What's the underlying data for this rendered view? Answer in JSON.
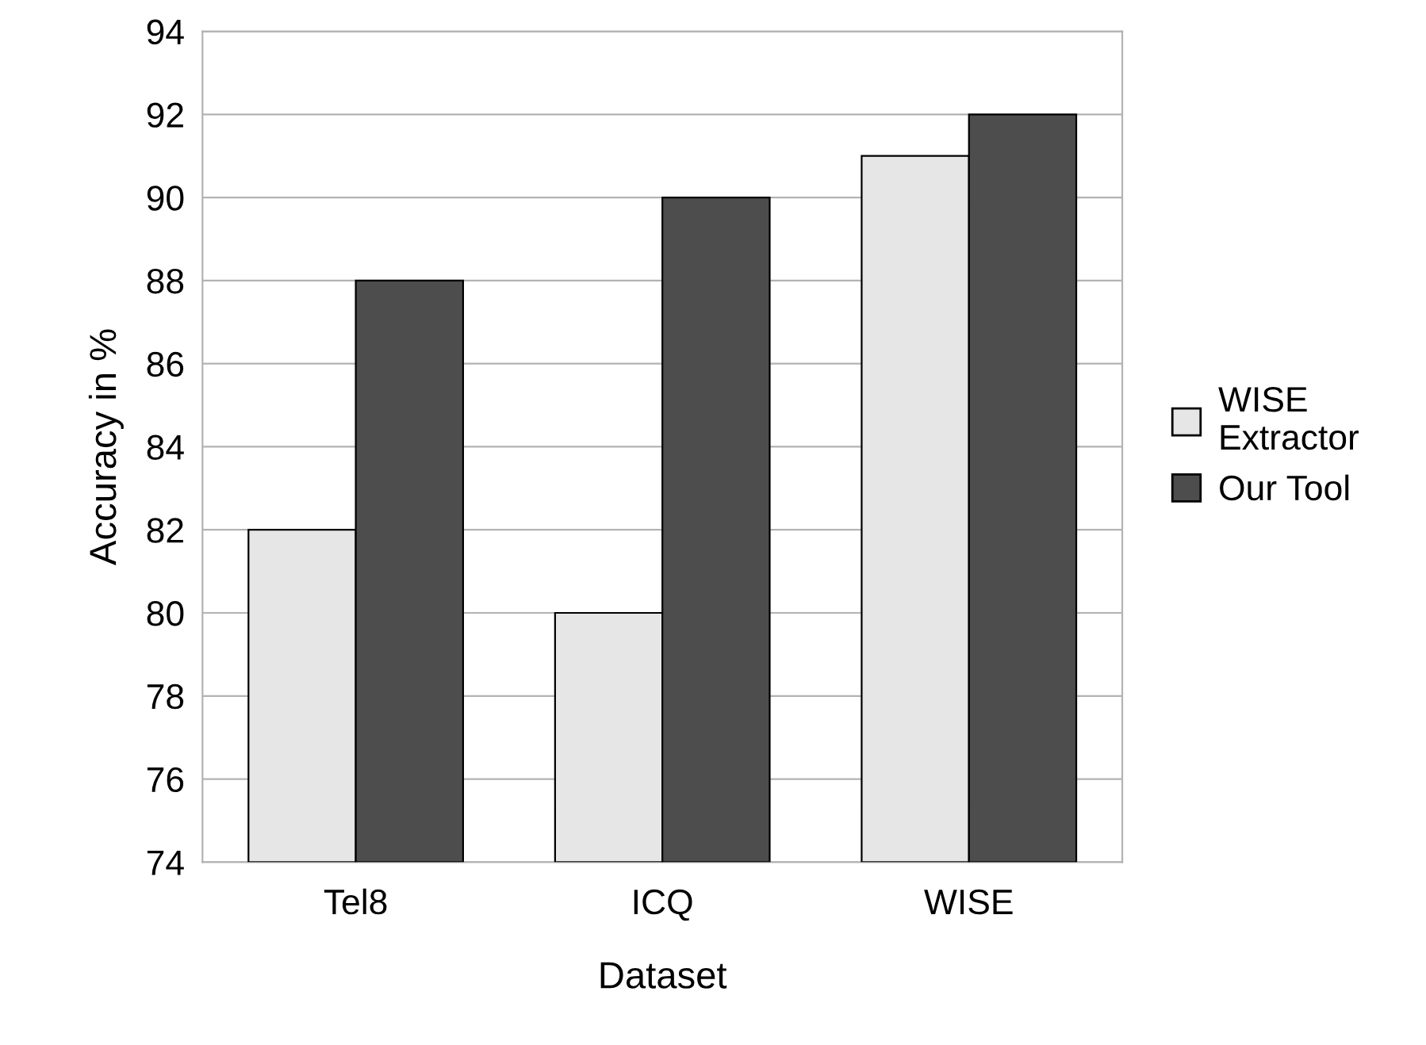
{
  "chart_data": {
    "type": "bar",
    "xlabel": "Dataset",
    "ylabel": "Accuracy in %",
    "categories": [
      "Tel8",
      "ICQ",
      "WISE"
    ],
    "series": [
      {
        "name": "WISE\nExtractor",
        "color": "#e6e6e6",
        "values": [
          82,
          80,
          91
        ]
      },
      {
        "name": "Our Tool",
        "color": "#4d4d4d",
        "values": [
          88,
          90,
          92
        ]
      }
    ],
    "ylim": [
      74,
      94
    ],
    "yticks": [
      74,
      76,
      78,
      80,
      82,
      84,
      86,
      88,
      90,
      92,
      94
    ],
    "grid": "y",
    "legend": "right"
  }
}
